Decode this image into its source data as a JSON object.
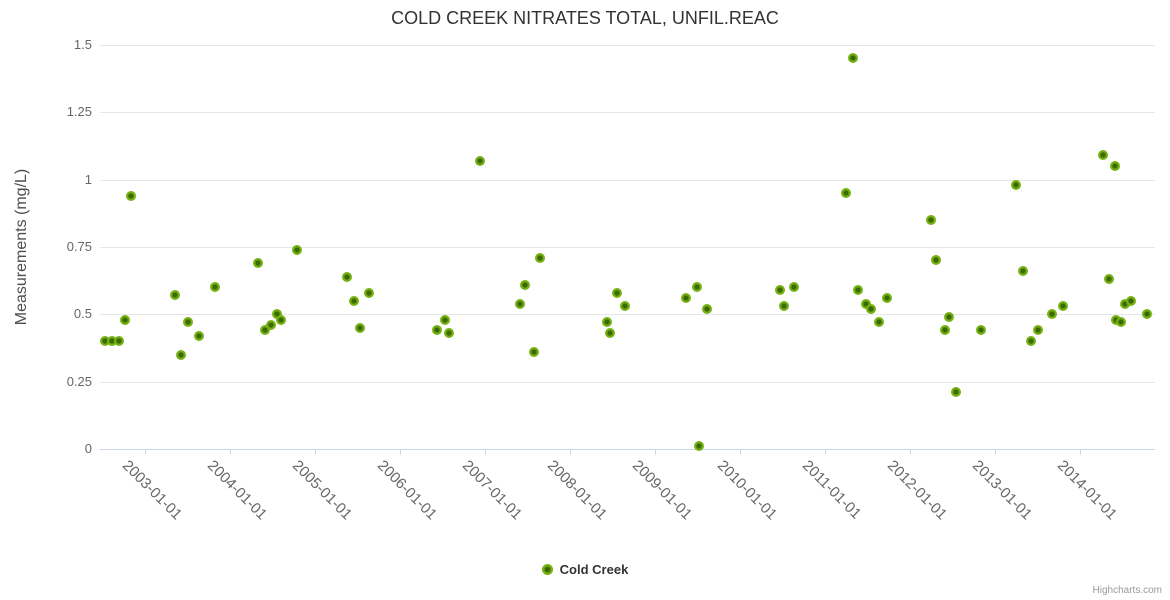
{
  "chart_data": {
    "type": "scatter",
    "title": "COLD CREEK NITRATES TOTAL, UNFIL.REAC",
    "xlabel": "",
    "ylabel": "Measurements (mg/L)",
    "ylim": [
      0,
      1.5
    ],
    "yticks": [
      0,
      0.25,
      0.5,
      0.75,
      1,
      1.25,
      1.5
    ],
    "ytick_labels": [
      "0",
      "0.25",
      "0.5",
      "0.75",
      "1",
      "1.25",
      "1.5"
    ],
    "xtick_labels": [
      "2003-01-01",
      "2004-01-01",
      "2005-01-01",
      "2006-01-01",
      "2007-01-01",
      "2008-01-01",
      "2009-01-01",
      "2010-01-01",
      "2011-01-01",
      "2012-01-01",
      "2013-01-01",
      "2014-01-01"
    ],
    "grid": "horizontal-only",
    "legend_position": "bottom-center",
    "series": [
      {
        "name": "Cold Creek",
        "marker_outer_color": "#76b113",
        "marker_inner_color": "#3a6b03",
        "points": [
          [
            "2002-07-15",
            0.4
          ],
          [
            "2002-08-15",
            0.4
          ],
          [
            "2002-09-15",
            0.4
          ],
          [
            "2002-10-10",
            0.48
          ],
          [
            "2002-11-05",
            0.94
          ],
          [
            "2003-05-10",
            0.57
          ],
          [
            "2003-06-05",
            0.35
          ],
          [
            "2003-07-05",
            0.47
          ],
          [
            "2003-08-20",
            0.42
          ],
          [
            "2003-11-01",
            0.6
          ],
          [
            "2004-05-01",
            0.69
          ],
          [
            "2004-06-01",
            0.44
          ],
          [
            "2004-06-25",
            0.46
          ],
          [
            "2004-07-20",
            0.5
          ],
          [
            "2004-08-10",
            0.48
          ],
          [
            "2004-10-15",
            0.74
          ],
          [
            "2005-05-20",
            0.64
          ],
          [
            "2005-06-20",
            0.55
          ],
          [
            "2005-07-15",
            0.45
          ],
          [
            "2005-08-20",
            0.58
          ],
          [
            "2006-06-10",
            0.44
          ],
          [
            "2006-07-15",
            0.48
          ],
          [
            "2006-08-01",
            0.43
          ],
          [
            "2006-12-10",
            1.07
          ],
          [
            "2007-06-01",
            0.54
          ],
          [
            "2007-06-20",
            0.61
          ],
          [
            "2007-08-01",
            0.36
          ],
          [
            "2007-08-25",
            0.71
          ],
          [
            "2008-06-10",
            0.47
          ],
          [
            "2008-06-20",
            0.43
          ],
          [
            "2008-07-20",
            0.58
          ],
          [
            "2008-08-25",
            0.53
          ],
          [
            "2009-05-15",
            0.56
          ],
          [
            "2009-07-01",
            0.6
          ],
          [
            "2009-07-10",
            0.01
          ],
          [
            "2009-08-10",
            0.52
          ],
          [
            "2010-06-20",
            0.59
          ],
          [
            "2010-07-10",
            0.53
          ],
          [
            "2010-08-20",
            0.6
          ],
          [
            "2011-04-01",
            0.95
          ],
          [
            "2011-05-01",
            1.45
          ],
          [
            "2011-05-20",
            0.59
          ],
          [
            "2011-06-25",
            0.54
          ],
          [
            "2011-07-15",
            0.52
          ],
          [
            "2011-08-20",
            0.47
          ],
          [
            "2011-09-25",
            0.56
          ],
          [
            "2012-04-01",
            0.85
          ],
          [
            "2012-04-20",
            0.7
          ],
          [
            "2012-06-01",
            0.44
          ],
          [
            "2012-06-15",
            0.49
          ],
          [
            "2012-07-15",
            0.21
          ],
          [
            "2012-11-01",
            0.44
          ],
          [
            "2013-04-01",
            0.98
          ],
          [
            "2013-05-01",
            0.66
          ],
          [
            "2013-06-05",
            0.4
          ],
          [
            "2013-07-01",
            0.44
          ],
          [
            "2013-09-01",
            0.5
          ],
          [
            "2013-10-20",
            0.53
          ],
          [
            "2014-04-10",
            1.09
          ],
          [
            "2014-05-05",
            0.63
          ],
          [
            "2014-06-01",
            1.05
          ],
          [
            "2014-06-05",
            0.48
          ],
          [
            "2014-06-25",
            0.47
          ],
          [
            "2014-07-10",
            0.54
          ],
          [
            "2014-08-05",
            0.55
          ],
          [
            "2014-10-15",
            0.5
          ]
        ]
      }
    ]
  },
  "legend": {
    "items": [
      {
        "label": "Cold Creek",
        "color": "#76b113"
      }
    ]
  },
  "credits": {
    "label": "Highcharts.com"
  },
  "colors": {
    "background": "#ffffff",
    "axis_line": "#ccd6eb",
    "gridline": "#e6e6e6",
    "title_text": "#333333",
    "axis_label_text": "#666666",
    "axis_title_text": "#4d4d4d",
    "legend_text": "#333333",
    "credits_text": "#999999",
    "point_outer": "#76b113",
    "point_inner": "#3a6b03"
  }
}
